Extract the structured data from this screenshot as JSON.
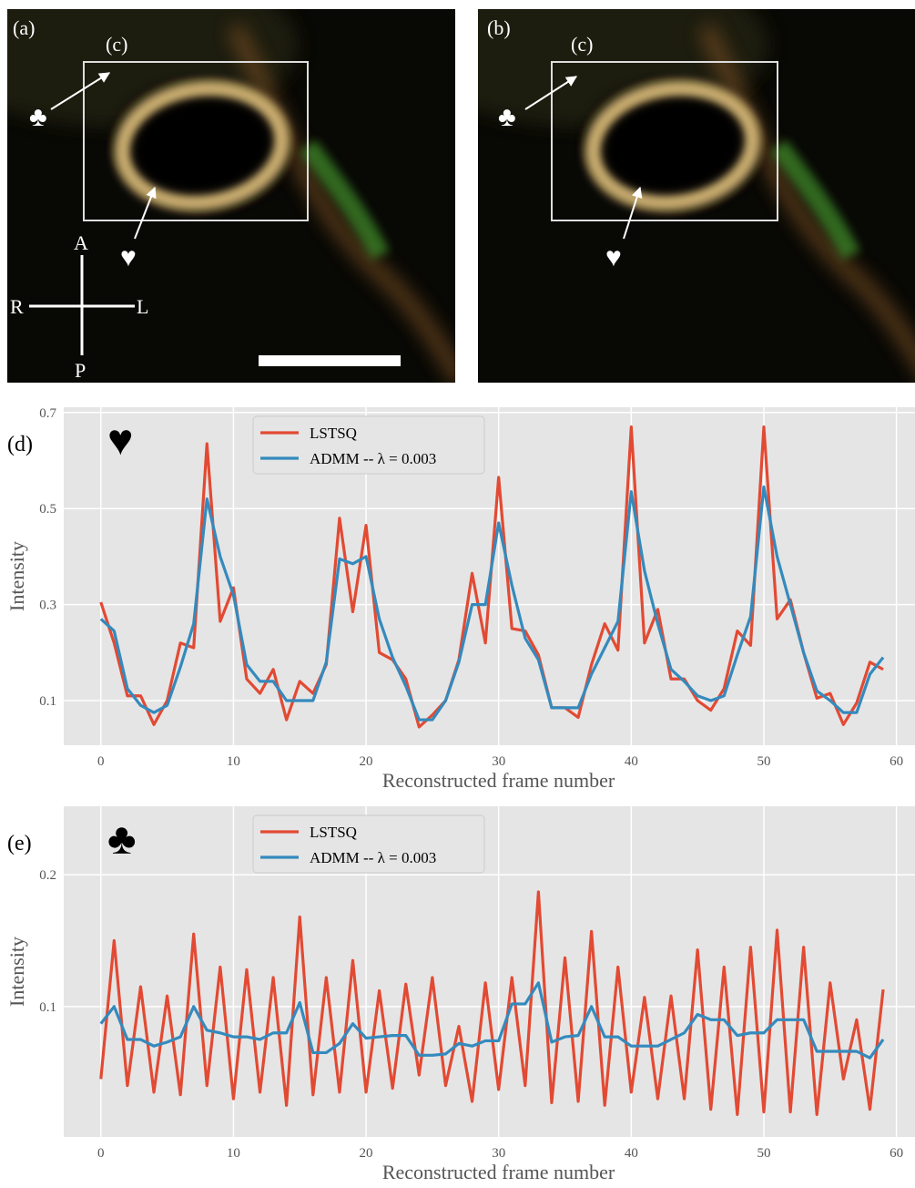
{
  "panels": [
    {
      "label": "(a)",
      "box_label": "(c)",
      "markers": [
        "♣",
        "♥"
      ],
      "orientation": [
        "A",
        "R",
        "L",
        "P"
      ]
    },
    {
      "label": "(b)",
      "box_label": "(c)",
      "markers": [
        "♣",
        "♥"
      ]
    }
  ],
  "chart_data": [
    {
      "type": "line",
      "panel_label": "(d)",
      "symbol": "♥",
      "xlabel": "Reconstructed frame number",
      "ylabel": "Intensity",
      "x": [
        0,
        1,
        2,
        3,
        4,
        5,
        6,
        7,
        8,
        9,
        10,
        11,
        12,
        13,
        14,
        15,
        16,
        17,
        18,
        19,
        20,
        21,
        22,
        23,
        24,
        25,
        26,
        27,
        28,
        29,
        30,
        31,
        32,
        33,
        34,
        35,
        36,
        37,
        38,
        39,
        40,
        41,
        42,
        43,
        44,
        45,
        46,
        47,
        48,
        49,
        50,
        51,
        52,
        53,
        54,
        55,
        56,
        57,
        58,
        59
      ],
      "series": [
        {
          "name": "LSTSQ",
          "color": "#e24a33",
          "values": [
            0.305,
            0.22,
            0.11,
            0.11,
            0.05,
            0.1,
            0.22,
            0.21,
            0.635,
            0.265,
            0.335,
            0.145,
            0.115,
            0.165,
            0.06,
            0.14,
            0.115,
            0.175,
            0.48,
            0.285,
            0.465,
            0.2,
            0.185,
            0.145,
            0.045,
            0.07,
            0.1,
            0.185,
            0.365,
            0.22,
            0.565,
            0.25,
            0.245,
            0.195,
            0.085,
            0.085,
            0.065,
            0.175,
            0.26,
            0.205,
            0.67,
            0.22,
            0.29,
            0.145,
            0.145,
            0.1,
            0.08,
            0.125,
            0.245,
            0.215,
            0.67,
            0.27,
            0.31,
            0.2,
            0.105,
            0.115,
            0.05,
            0.095,
            0.18,
            0.165
          ]
        },
        {
          "name": "ADMM -- λ = 0.003",
          "color": "#348abd",
          "values": [
            0.27,
            0.245,
            0.125,
            0.09,
            0.075,
            0.09,
            0.17,
            0.26,
            0.52,
            0.4,
            0.32,
            0.175,
            0.14,
            0.14,
            0.1,
            0.1,
            0.1,
            0.18,
            0.395,
            0.385,
            0.4,
            0.27,
            0.19,
            0.13,
            0.06,
            0.06,
            0.1,
            0.18,
            0.3,
            0.3,
            0.47,
            0.34,
            0.23,
            0.185,
            0.085,
            0.085,
            0.085,
            0.155,
            0.21,
            0.265,
            0.535,
            0.37,
            0.26,
            0.165,
            0.14,
            0.11,
            0.1,
            0.11,
            0.195,
            0.275,
            0.545,
            0.4,
            0.3,
            0.2,
            0.12,
            0.1,
            0.075,
            0.075,
            0.155,
            0.19
          ]
        }
      ],
      "xlim": [
        -2.8,
        61.4
      ],
      "xticks": [
        0,
        10,
        20,
        30,
        40,
        50,
        60
      ],
      "ylim": [
        0.007,
        0.711
      ],
      "yticks": [
        0.1,
        0.3,
        0.5,
        0.7
      ],
      "grid": true
    },
    {
      "type": "line",
      "panel_label": "(e)",
      "symbol": "♣",
      "xlabel": "Reconstructed frame number",
      "ylabel": "Intensity",
      "x": [
        0,
        1,
        2,
        3,
        4,
        5,
        6,
        7,
        8,
        9,
        10,
        11,
        12,
        13,
        14,
        15,
        16,
        17,
        18,
        19,
        20,
        21,
        22,
        23,
        24,
        25,
        26,
        27,
        28,
        29,
        30,
        31,
        32,
        33,
        34,
        35,
        36,
        37,
        38,
        39,
        40,
        41,
        42,
        43,
        44,
        45,
        46,
        47,
        48,
        49,
        50,
        51,
        52,
        53,
        54,
        55,
        56,
        57,
        58,
        59
      ],
      "series": [
        {
          "name": "LSTSQ",
          "color": "#e24a33",
          "values": [
            0.045,
            0.15,
            0.04,
            0.115,
            0.035,
            0.108,
            0.033,
            0.155,
            0.04,
            0.13,
            0.03,
            0.128,
            0.035,
            0.122,
            0.025,
            0.168,
            0.033,
            0.122,
            0.035,
            0.135,
            0.035,
            0.112,
            0.038,
            0.117,
            0.048,
            0.122,
            0.04,
            0.085,
            0.028,
            0.118,
            0.037,
            0.122,
            0.04,
            0.187,
            0.027,
            0.137,
            0.028,
            0.157,
            0.025,
            0.13,
            0.035,
            0.107,
            0.03,
            0.108,
            0.03,
            0.143,
            0.022,
            0.13,
            0.018,
            0.145,
            0.02,
            0.158,
            0.02,
            0.145,
            0.018,
            0.118,
            0.045,
            0.09,
            0.022,
            0.113
          ]
        },
        {
          "name": "ADMM -- λ = 0.003",
          "color": "#348abd",
          "values": [
            0.087,
            0.1,
            0.075,
            0.075,
            0.07,
            0.073,
            0.077,
            0.1,
            0.082,
            0.08,
            0.077,
            0.077,
            0.075,
            0.08,
            0.08,
            0.103,
            0.065,
            0.065,
            0.072,
            0.087,
            0.076,
            0.077,
            0.078,
            0.078,
            0.063,
            0.063,
            0.064,
            0.072,
            0.07,
            0.074,
            0.074,
            0.102,
            0.102,
            0.118,
            0.073,
            0.077,
            0.078,
            0.1,
            0.077,
            0.077,
            0.07,
            0.07,
            0.07,
            0.075,
            0.08,
            0.094,
            0.09,
            0.09,
            0.078,
            0.08,
            0.08,
            0.09,
            0.09,
            0.09,
            0.066,
            0.066,
            0.066,
            0.066,
            0.061,
            0.075
          ]
        }
      ],
      "xlim": [
        -2.8,
        61.4
      ],
      "xticks": [
        0,
        10,
        20,
        30,
        40,
        50,
        60
      ],
      "ylim": [
        0.001,
        0.252
      ],
      "yticks": [
        0.1,
        0.2
      ],
      "grid": true
    }
  ]
}
